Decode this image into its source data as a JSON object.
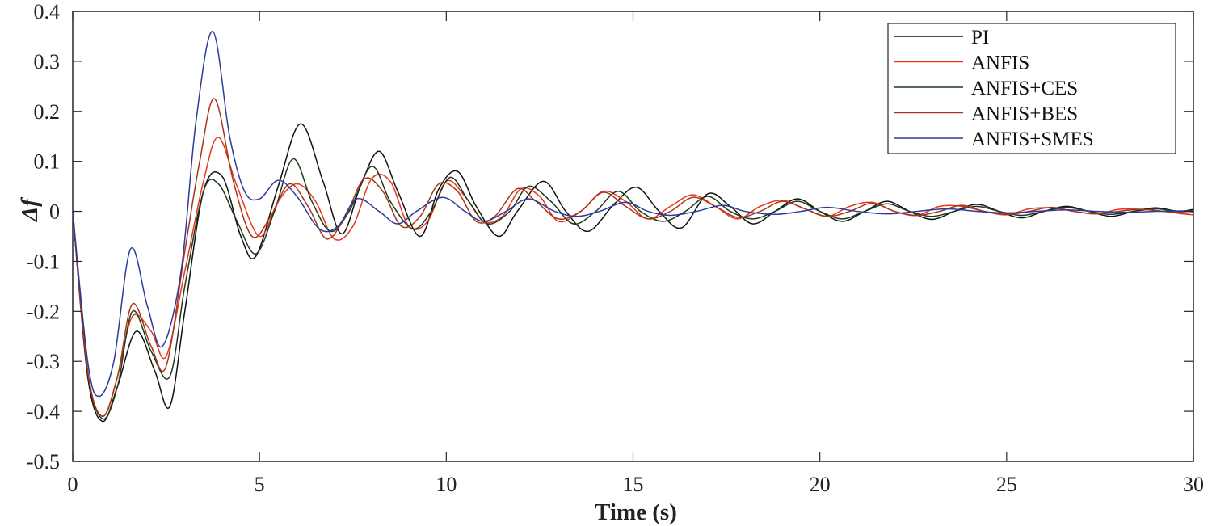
{
  "chart_data": {
    "type": "line",
    "xlabel": "Time (s)",
    "ylabel": "Δf",
    "xlim": [
      0,
      30
    ],
    "ylim": [
      -0.5,
      0.4
    ],
    "xticks": [
      0,
      5,
      10,
      15,
      20,
      25,
      30
    ],
    "xtick_labels": [
      "0",
      "5",
      "10",
      "15",
      "20",
      "25",
      "30"
    ],
    "yticks": [
      -0.5,
      -0.4,
      -0.3,
      -0.2,
      -0.1,
      0,
      0.1,
      0.2,
      0.3,
      0.4
    ],
    "ytick_labels": [
      "-0.5",
      "-0.4",
      "-0.3",
      "-0.2",
      "-0.1",
      "0",
      "0.1",
      "0.2",
      "0.3",
      "0.4"
    ],
    "grid": false,
    "legend_position": "top-right",
    "series": [
      {
        "name": "PI",
        "color": "#111111",
        "x": [
          0,
          0.4,
          0.8,
          1.2,
          1.7,
          2.2,
          2.6,
          3.0,
          3.5,
          4.0,
          4.5,
          4.9,
          5.5,
          6.1,
          6.7,
          7.2,
          7.7,
          8.2,
          8.7,
          9.3,
          9.8,
          10.3,
          10.8,
          11.4,
          11.9,
          12.6,
          13.2,
          13.8,
          14.5,
          15.1,
          15.7,
          16.3,
          17.0,
          17.6,
          18.2,
          18.8,
          19.4,
          20.0,
          20.6,
          21.2,
          21.8,
          22.4,
          23.0,
          23.6,
          24.2,
          24.8,
          25.4,
          26.0,
          26.6,
          27.2,
          27.8,
          28.4,
          29.0,
          29.6,
          30.0
        ],
        "values": [
          0,
          -0.33,
          -0.42,
          -0.35,
          -0.24,
          -0.32,
          -0.39,
          -0.2,
          0.04,
          0.07,
          -0.05,
          -0.09,
          0.05,
          0.175,
          0.06,
          -0.045,
          0.05,
          0.12,
          0.04,
          -0.05,
          0.045,
          0.08,
          0.01,
          -0.05,
          0.0,
          0.06,
          0.0,
          -0.04,
          0.015,
          0.048,
          0.0,
          -0.033,
          0.035,
          0.01,
          -0.025,
          0.0,
          0.025,
          0.0,
          -0.02,
          0.0,
          0.02,
          0.0,
          -0.016,
          0.0,
          0.014,
          0.0,
          -0.013,
          0.0,
          0.01,
          0.0,
          -0.01,
          0.0,
          0.007,
          0.0,
          0.004
        ]
      },
      {
        "name": "ANFIS",
        "color": "#e8361c",
        "x": [
          0,
          0.4,
          0.8,
          1.2,
          1.6,
          2.1,
          2.5,
          3.0,
          3.5,
          3.9,
          4.4,
          5.0,
          5.5,
          6.0,
          6.5,
          7.0,
          7.5,
          8.0,
          8.5,
          9.0,
          9.5,
          10.0,
          10.5,
          11.0,
          11.5,
          12.0,
          12.5,
          13.0,
          13.6,
          14.2,
          14.8,
          15.4,
          16.0,
          16.6,
          17.2,
          17.8,
          18.4,
          19.0,
          19.6,
          20.2,
          20.8,
          21.4,
          22.0,
          22.6,
          23.2,
          23.8,
          24.4,
          25.0,
          25.6,
          26.2,
          26.8,
          27.4,
          28.0,
          28.6,
          29.2,
          29.7,
          30.0
        ],
        "values": [
          0,
          -0.32,
          -0.41,
          -0.33,
          -0.21,
          -0.24,
          -0.29,
          -0.12,
          0.06,
          0.148,
          0.05,
          -0.05,
          0.02,
          0.055,
          0.02,
          -0.055,
          -0.03,
          0.065,
          0.06,
          -0.03,
          -0.02,
          0.06,
          0.03,
          -0.02,
          -0.01,
          0.045,
          0.03,
          -0.02,
          0.0,
          0.04,
          0.02,
          -0.015,
          0.01,
          0.033,
          0.01,
          -0.015,
          0.01,
          0.022,
          0.005,
          -0.01,
          0.01,
          0.018,
          0.0,
          -0.008,
          0.01,
          0.01,
          0.0,
          -0.007,
          0.005,
          0.007,
          0.0,
          -0.005,
          0.004,
          0.004,
          0.0,
          -0.005,
          -0.007
        ]
      },
      {
        "name": "ANFIS+CES",
        "color": "#1d3a1c",
        "x": [
          0,
          0.4,
          0.8,
          1.2,
          1.6,
          2.1,
          2.6,
          3.0,
          3.5,
          3.9,
          4.4,
          4.9,
          5.4,
          5.9,
          6.4,
          6.9,
          7.4,
          8.0,
          8.5,
          9.1,
          9.6,
          10.1,
          10.6,
          11.1,
          11.7,
          12.2,
          12.8,
          13.4,
          14.0,
          14.6,
          15.2,
          15.8,
          16.4,
          17.0,
          17.6,
          18.2,
          18.8,
          19.4,
          20.0,
          20.6,
          21.2,
          21.8,
          22.4,
          23.0,
          23.6,
          24.2,
          24.8,
          25.4,
          26.0,
          26.6,
          27.2,
          27.8,
          28.4,
          29.0,
          29.6,
          30.0
        ],
        "values": [
          0,
          -0.32,
          -0.415,
          -0.35,
          -0.2,
          -0.28,
          -0.33,
          -0.15,
          0.04,
          0.055,
          -0.02,
          -0.085,
          0.0,
          0.105,
          0.02,
          -0.04,
          0.0,
          0.09,
          0.02,
          -0.035,
          0.0,
          0.068,
          0.02,
          -0.025,
          0.0,
          0.05,
          0.02,
          -0.025,
          0.0,
          0.04,
          0.0,
          -0.02,
          0.0,
          0.03,
          0.0,
          -0.015,
          0.0,
          0.02,
          0.0,
          -0.015,
          0.0,
          0.015,
          0.0,
          -0.01,
          0.0,
          0.01,
          0.0,
          -0.008,
          0.0,
          0.008,
          0.0,
          -0.006,
          0.0,
          0.005,
          0.0,
          0.002
        ]
      },
      {
        "name": "ANFIS+BES",
        "color": "#a5361b",
        "x": [
          0,
          0.4,
          0.8,
          1.2,
          1.6,
          2.1,
          2.5,
          3.0,
          3.4,
          3.8,
          4.3,
          4.8,
          5.3,
          5.8,
          6.3,
          6.8,
          7.3,
          7.8,
          8.3,
          8.8,
          9.3,
          9.8,
          10.3,
          10.8,
          11.3,
          11.9,
          12.4,
          13.0,
          13.6,
          14.2,
          14.8,
          15.4,
          16.0,
          16.6,
          17.2,
          17.8,
          18.4,
          19.0,
          19.6,
          20.2,
          20.8,
          21.4,
          22.0,
          22.6,
          23.2,
          23.8,
          24.4,
          25.0,
          25.6,
          26.2,
          26.8,
          27.4,
          28.0,
          28.6,
          29.2,
          29.8,
          30.0
        ],
        "values": [
          0,
          -0.32,
          -0.41,
          -0.33,
          -0.185,
          -0.27,
          -0.31,
          -0.08,
          0.1,
          0.225,
          0.06,
          -0.05,
          -0.01,
          0.055,
          0.01,
          -0.055,
          -0.01,
          0.065,
          0.04,
          -0.03,
          -0.01,
          0.055,
          0.04,
          -0.02,
          -0.01,
          0.045,
          0.02,
          -0.015,
          0.0,
          0.038,
          0.01,
          -0.015,
          0.0,
          0.028,
          0.01,
          -0.012,
          0.0,
          0.02,
          0.005,
          -0.01,
          0.0,
          0.016,
          0.0,
          -0.008,
          0.0,
          0.012,
          0.0,
          -0.006,
          0.0,
          0.008,
          0.0,
          -0.005,
          0.0,
          0.004,
          0.0,
          -0.003,
          -0.002
        ]
      },
      {
        "name": "ANFIS+SMES",
        "color": "#2b3b9c",
        "x": [
          0,
          0.4,
          0.7,
          1.1,
          1.55,
          2.0,
          2.4,
          2.9,
          3.3,
          3.75,
          4.2,
          4.6,
          5.0,
          5.5,
          6.0,
          6.6,
          7.1,
          7.6,
          8.2,
          8.7,
          9.2,
          9.9,
          10.5,
          11.0,
          11.6,
          12.2,
          12.9,
          13.5,
          14.1,
          14.8,
          15.4,
          16.0,
          16.7,
          17.4,
          18.0,
          18.8,
          19.5,
          20.2,
          21.0,
          21.8,
          22.6,
          23.4,
          24.2,
          25.0,
          25.8,
          26.6,
          27.4,
          28.2,
          29.0,
          29.8,
          30.0
        ],
        "values": [
          0,
          -0.3,
          -0.37,
          -0.3,
          -0.075,
          -0.19,
          -0.27,
          -0.12,
          0.18,
          0.36,
          0.15,
          0.04,
          0.025,
          0.062,
          0.03,
          -0.035,
          -0.03,
          0.025,
          0.0,
          -0.025,
          0.0,
          0.028,
          0.0,
          -0.02,
          0.0,
          0.025,
          0.0,
          -0.01,
          0.0,
          0.018,
          0.0,
          -0.008,
          0.0,
          0.012,
          0.0,
          -0.006,
          0.0,
          0.008,
          0.0,
          -0.005,
          0.0,
          0.005,
          0.0,
          -0.003,
          0.0,
          0.003,
          0.0,
          -0.002,
          0.0,
          0.001,
          0.0
        ]
      }
    ]
  }
}
